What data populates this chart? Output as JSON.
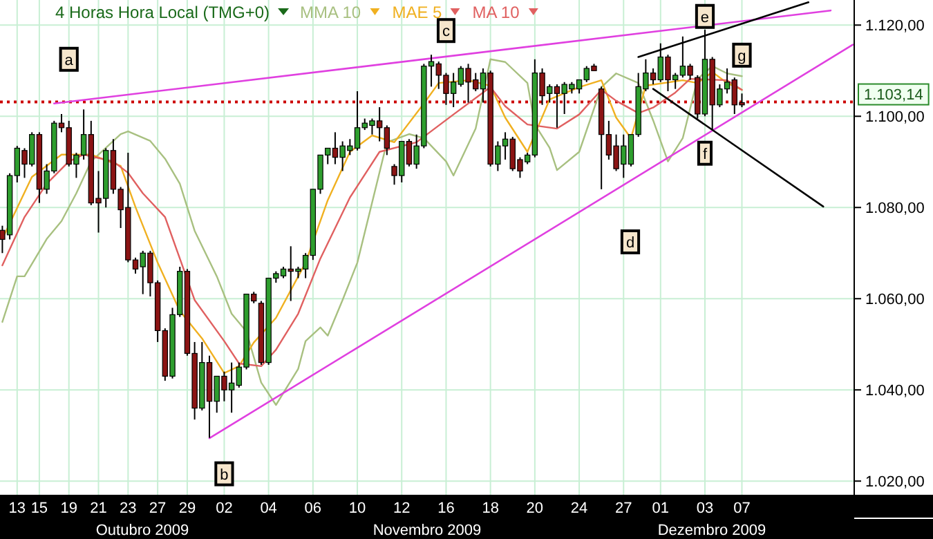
{
  "chart_data": {
    "type": "candlestick",
    "title": "4 Horas Hora Local (TMG+0)",
    "legend": "top",
    "grid": true,
    "ylim": [
      1017,
      1125.5
    ],
    "yticks": [
      {
        "value": 1020,
        "label": "1.020,00"
      },
      {
        "value": 1040,
        "label": "1.040,00"
      },
      {
        "value": 1060,
        "label": "1.060,00"
      },
      {
        "value": 1080,
        "label": "1.080,00"
      },
      {
        "value": 1100,
        "label": "1.100,00"
      },
      {
        "value": 1120,
        "label": "1.120,00"
      }
    ],
    "categories": [
      null,
      null,
      "13",
      null,
      null,
      "15",
      null,
      null,
      null,
      "19",
      null,
      null,
      null,
      "21",
      null,
      null,
      null,
      "23",
      null,
      null,
      null,
      "27",
      null,
      null,
      null,
      "29",
      null,
      null,
      null,
      null,
      "02",
      null,
      null,
      null,
      null,
      null,
      "04",
      null,
      null,
      null,
      null,
      null,
      "06",
      null,
      null,
      null,
      null,
      null,
      "10",
      null,
      null,
      null,
      null,
      null,
      "12",
      null,
      null,
      null,
      null,
      null,
      "16",
      null,
      null,
      null,
      null,
      null,
      "18",
      null,
      null,
      null,
      null,
      null,
      "20",
      null,
      null,
      null,
      null,
      null,
      "24",
      null,
      null,
      null,
      null,
      null,
      "27",
      null,
      null,
      null,
      null,
      "01",
      null,
      null,
      null,
      null,
      null,
      "03",
      null,
      null,
      null,
      null,
      "07",
      null,
      null,
      null,
      null,
      null,
      null,
      null,
      null,
      null,
      null,
      null,
      null,
      null,
      null,
      null
    ],
    "ohlc": [
      [
        1075,
        1076,
        1070,
        1073
      ],
      [
        1074,
        1087.5,
        1073,
        1087
      ],
      [
        1087,
        1093.5,
        1085.5,
        1093
      ],
      [
        1092.5,
        1093,
        1086.5,
        1089.5
      ],
      [
        1089.5,
        1096.5,
        1089,
        1096
      ],
      [
        1096,
        1096.5,
        1081,
        1084
      ],
      [
        1084,
        1089.5,
        1083,
        1088
      ],
      [
        1088,
        1099,
        1087.5,
        1098.5
      ],
      [
        1098.5,
        1100.5,
        1096.5,
        1097.5
      ],
      [
        1097.5,
        1099,
        1089,
        1089.5
      ],
      [
        1089.5,
        1092,
        1086.5,
        1091.5
      ],
      [
        1091.5,
        1101.5,
        1090.5,
        1096
      ],
      [
        1096,
        1099,
        1080.5,
        1081
      ],
      [
        1082,
        1088,
        1074.5,
        1081
      ],
      [
        1082,
        1093,
        1080,
        1092.5
      ],
      [
        1092.5,
        1095,
        1083,
        1084
      ],
      [
        1084,
        1084.5,
        1075.5,
        1079.5
      ],
      [
        1080,
        1092,
        1068,
        1068.5
      ],
      [
        1068.5,
        1069,
        1065.5,
        1066.5
      ],
      [
        1067,
        1070.5,
        1061,
        1070
      ],
      [
        1070,
        1070.5,
        1060.5,
        1063.5
      ],
      [
        1063.5,
        1064,
        1050.5,
        1053
      ],
      [
        1053,
        1053.5,
        1042,
        1043
      ],
      [
        1043,
        1058,
        1042.5,
        1056.5
      ],
      [
        1056.5,
        1067,
        1056,
        1066
      ],
      [
        1066,
        1066.5,
        1047.5,
        1048
      ],
      [
        1048,
        1050.5,
        1033.5,
        1036
      ],
      [
        1036,
        1050.5,
        1035.5,
        1046
      ],
      [
        1046,
        1047.5,
        1029.5,
        1037.5
      ],
      [
        1037.5,
        1043,
        1035,
        1043
      ],
      [
        1043,
        1044,
        1037.5,
        1040
      ],
      [
        1040,
        1046,
        1035,
        1041.5
      ],
      [
        1041,
        1046,
        1040.5,
        1045
      ],
      [
        1045,
        1061,
        1044.5,
        1061
      ],
      [
        1061,
        1061.5,
        1059,
        1059.5
      ],
      [
        1059,
        1059.5,
        1045.5,
        1046
      ],
      [
        1046,
        1064.5,
        1045.5,
        1064.5
      ],
      [
        1064.5,
        1066,
        1063.5,
        1065.5
      ],
      [
        1065,
        1067,
        1064.5,
        1066.5
      ],
      [
        1066.5,
        1071.5,
        1059.5,
        1066
      ],
      [
        1066,
        1067,
        1064.5,
        1066.5
      ],
      [
        1066.5,
        1070,
        1064.5,
        1069.5
      ],
      [
        1069.5,
        1084,
        1068.5,
        1084
      ],
      [
        1084,
        1091.5,
        1083,
        1091.5
      ],
      [
        1091.5,
        1093,
        1089.5,
        1093
      ],
      [
        1093,
        1096.5,
        1089.5,
        1091
      ],
      [
        1091,
        1094.5,
        1088,
        1093.5
      ],
      [
        1092.5,
        1095,
        1091.5,
        1093.5
      ],
      [
        1093,
        1105.5,
        1092.5,
        1097.5
      ],
      [
        1097.5,
        1099.5,
        1097,
        1098.5
      ],
      [
        1098,
        1099.5,
        1096,
        1099
      ],
      [
        1099,
        1102,
        1094.5,
        1097.5
      ],
      [
        1097.5,
        1098,
        1091.5,
        1093
      ],
      [
        1089,
        1089.5,
        1085,
        1087
      ],
      [
        1087,
        1094.5,
        1085.5,
        1094.5
      ],
      [
        1094.5,
        1095,
        1089,
        1089.5
      ],
      [
        1089.5,
        1096,
        1088.5,
        1093.5
      ],
      [
        1093.5,
        1111.5,
        1093,
        1111
      ],
      [
        1111,
        1113.5,
        1106.5,
        1112
      ],
      [
        1111.5,
        1112,
        1106,
        1109
      ],
      [
        1109,
        1109.5,
        1102.5,
        1105
      ],
      [
        1105,
        1109.5,
        1102,
        1107.5
      ],
      [
        1107,
        1111,
        1106.5,
        1110.5
      ],
      [
        1110.5,
        1111.5,
        1103,
        1107.5
      ],
      [
        1108,
        1109.5,
        1105.5,
        1106
      ],
      [
        1106,
        1110.5,
        1103,
        1109.5
      ],
      [
        1109.5,
        1110,
        1089,
        1089.5
      ],
      [
        1089.5,
        1094.5,
        1088,
        1093.5
      ],
      [
        1093.5,
        1096.5,
        1090.5,
        1095
      ],
      [
        1095,
        1095.5,
        1088,
        1088.5
      ],
      [
        1090.5,
        1091,
        1086.5,
        1088
      ],
      [
        1090,
        1092,
        1089.5,
        1091.5
      ],
      [
        1091.5,
        1112.5,
        1091,
        1109.5
      ],
      [
        1109.5,
        1110.5,
        1102.5,
        1104.5
      ],
      [
        1105,
        1107,
        1103,
        1106.5
      ],
      [
        1106.5,
        1107,
        1097.5,
        1105
      ],
      [
        1105,
        1107.5,
        1100.5,
        1107
      ],
      [
        1106,
        1107.5,
        1105,
        1107
      ],
      [
        1106,
        1108,
        1105,
        1108
      ],
      [
        1108,
        1111,
        1107.5,
        1110.5
      ],
      [
        1111,
        1111.5,
        1110,
        1110
      ],
      [
        1106,
        1106.5,
        1084,
        1096
      ],
      [
        1096,
        1099,
        1090.5,
        1091.5
      ],
      [
        1093.5,
        1096,
        1088,
        1088.5
      ],
      [
        1089.5,
        1096,
        1086.5,
        1093.5
      ],
      [
        1089.5,
        1096,
        1089,
        1096
      ],
      [
        1096,
        1109.5,
        1095.5,
        1106.5
      ],
      [
        1106,
        1112.5,
        1105.5,
        1109.5
      ],
      [
        1109.5,
        1110.5,
        1107,
        1108
      ],
      [
        1108,
        1116,
        1107.5,
        1113
      ],
      [
        1113,
        1113.5,
        1105.5,
        1108
      ],
      [
        1108,
        1109.5,
        1106,
        1109
      ],
      [
        1109,
        1117.5,
        1108.5,
        1111
      ],
      [
        1111,
        1111.5,
        1108,
        1109
      ],
      [
        1108.5,
        1109,
        1099.5,
        1100.5
      ],
      [
        1100.5,
        1119,
        1100,
        1112.5
      ],
      [
        1112.5,
        1113,
        1097,
        1102.5
      ],
      [
        1102.5,
        1107,
        1102,
        1106
      ],
      [
        1106,
        1110.5,
        1105,
        1107.5
      ],
      [
        1108,
        1108.5,
        1100.5,
        1102.5
      ],
      [
        1103,
        1105,
        1102,
        1102.5
      ],
      null,
      null,
      null,
      null,
      null,
      null,
      null,
      null,
      null,
      null,
      null,
      null,
      null,
      null,
      null
    ],
    "series": [
      {
        "name": "MMA 10",
        "type": "line",
        "color": "#a8c080",
        "values": [
          1054.9,
          null,
          1064.9,
          1064.9,
          null,
          null,
          1073.1,
          null,
          1077,
          null,
          1083.1,
          null,
          1090.1,
          null,
          null,
          null,
          1096.1,
          1096.7,
          null,
          null,
          1094.6,
          null,
          1090.7,
          null,
          1085.2,
          null,
          1074.9,
          null,
          null,
          1064.9,
          null,
          1056.7,
          null,
          1052.8,
          null,
          1041.6,
          null,
          1036.7,
          null,
          null,
          1044.6,
          1050.7,
          null,
          1053.7,
          1051.9,
          null,
          1059.7,
          null,
          1067.9,
          null,
          null,
          null,
          1094.3,
          null,
          null,
          1096.1,
          null,
          1095.2,
          null,
          null,
          1090.1,
          1087,
          null,
          null,
          1097.3,
          null,
          1112.5,
          null,
          1111.9,
          null,
          null,
          1107.3,
          1098.2,
          null,
          1093.1,
          1088.2,
          null,
          null,
          1092.2,
          null,
          null,
          1106.4,
          null,
          1109.4,
          null,
          null,
          1107.3,
          null,
          1099.1,
          null,
          1090.1,
          null,
          1095.2,
          null,
          1108.2,
          null,
          1111,
          null,
          1109.4,
          null,
          1108.8,
          null,
          null,
          null,
          null,
          null,
          null,
          null,
          null,
          null,
          null,
          null,
          null,
          null,
          null,
          null
        ]
      },
      {
        "name": "MAE 5",
        "type": "line",
        "color": "#f0b020",
        "values": [
          1073.1,
          null,
          null,
          null,
          1086.7,
          null,
          null,
          null,
          1091.6,
          null,
          null,
          null,
          1091.6,
          null,
          null,
          null,
          1089.1,
          null,
          1080.1,
          null,
          null,
          1067.9,
          null,
          null,
          1057.3,
          null,
          null,
          1051.3,
          null,
          null,
          1043.7,
          null,
          1045.2,
          null,
          1050.4,
          null,
          null,
          1055.8,
          null,
          null,
          null,
          1067.9,
          null,
          null,
          1081.6,
          null,
          null,
          1092.2,
          null,
          null,
          1095.8,
          null,
          null,
          1094.3,
          null,
          null,
          null,
          1102.8,
          null,
          1107.3,
          null,
          null,
          null,
          1107.9,
          null,
          null,
          1106.7,
          null,
          1099.7,
          null,
          null,
          1092.2,
          null,
          null,
          1103.7,
          null,
          null,
          null,
          1106.4,
          null,
          null,
          1107.9,
          null,
          1099.7,
          null,
          1095.2,
          null,
          1106.7,
          null,
          null,
          null,
          null,
          1107.9,
          null,
          1107.3,
          null,
          1109.7,
          null,
          1107.3,
          null,
          1105.8,
          null,
          null,
          null,
          null,
          null,
          null,
          null,
          null,
          null,
          null,
          null,
          null,
          null,
          null,
          null
        ]
      },
      {
        "name": "MA 10",
        "type": "line",
        "color": "#e06060",
        "values": [
          1067.3,
          null,
          null,
          1077.9,
          null,
          null,
          1085.2,
          null,
          null,
          1090.1,
          null,
          1091.6,
          null,
          null,
          null,
          1090.1,
          null,
          1087.6,
          null,
          1083.1,
          null,
          null,
          1077.9,
          null,
          1068.8,
          null,
          1059.7,
          null,
          null,
          null,
          1050.7,
          null,
          1045.8,
          null,
          null,
          1045.2,
          null,
          1048.8,
          null,
          null,
          1056.7,
          null,
          null,
          1068.8,
          null,
          null,
          null,
          1082.2,
          null,
          null,
          null,
          1092.2,
          null,
          null,
          null,
          null,
          1094.3,
          null,
          null,
          null,
          null,
          1100.4,
          null,
          null,
          null,
          null,
          1106.4,
          null,
          1102.2,
          null,
          null,
          1098.2,
          null,
          null,
          null,
          1097.3,
          null,
          null,
          1100.4,
          null,
          null,
          1105.8,
          null,
          1103.4,
          null,
          null,
          1100.7,
          null,
          1101.9,
          null,
          null,
          1105.2,
          null,
          1108.2,
          null,
          null,
          null,
          null,
          1107.9,
          null,
          1105.8,
          null,
          null,
          null,
          null,
          null,
          null,
          null,
          null,
          null,
          null,
          null,
          null,
          null,
          null,
          null
        ]
      },
      {
        "type": "line",
        "color": "#e040e0",
        "values": [
          null,
          null,
          null,
          null,
          null,
          null,
          null,
          1102.8,
          null,
          null,
          null,
          null,
          null,
          null,
          null,
          null,
          null,
          null,
          null,
          null,
          null,
          null,
          null,
          null,
          null,
          null,
          null,
          null,
          null,
          null,
          null,
          null,
          null,
          null,
          null,
          null,
          null,
          null,
          null,
          null,
          null,
          null,
          null,
          null,
          null,
          null,
          null,
          null,
          null,
          null,
          null,
          null,
          null,
          null,
          null,
          null,
          null,
          null,
          null,
          null,
          null,
          null,
          null,
          null,
          null,
          null,
          null,
          null,
          null,
          null,
          null,
          null,
          null,
          null,
          null,
          null,
          null,
          null,
          null,
          null,
          null,
          null,
          null,
          null,
          null,
          null,
          null,
          null,
          null,
          null,
          null,
          null,
          null,
          null,
          null,
          null,
          null,
          null,
          null,
          null,
          null,
          null,
          null,
          null,
          null,
          null,
          null,
          null,
          null,
          null,
          null,
          null,
          1123.2,
          null,
          null,
          null
        ]
      },
      {
        "type": "line",
        "color": "#e040e0",
        "values": [
          null,
          null,
          null,
          null,
          null,
          null,
          null,
          null,
          null,
          null,
          null,
          null,
          null,
          null,
          null,
          null,
          null,
          null,
          null,
          null,
          null,
          null,
          null,
          null,
          null,
          null,
          null,
          null,
          1029.4,
          null,
          null,
          null,
          null,
          null,
          null,
          null,
          null,
          null,
          null,
          null,
          null,
          null,
          null,
          null,
          null,
          null,
          null,
          null,
          null,
          null,
          null,
          null,
          null,
          null,
          null,
          null,
          null,
          null,
          null,
          null,
          null,
          null,
          null,
          null,
          null,
          null,
          null,
          null,
          null,
          null,
          null,
          null,
          null,
          null,
          null,
          null,
          null,
          null,
          null,
          null,
          null,
          null,
          null,
          null,
          null,
          null,
          null,
          null,
          null,
          null,
          null,
          null,
          null,
          null,
          null,
          null,
          null,
          null,
          null,
          null,
          null,
          null,
          null,
          null,
          null,
          null,
          null,
          null,
          null,
          null,
          null,
          null,
          null,
          null,
          null,
          1115.7
        ]
      },
      {
        "type": "line",
        "color": "#000000",
        "values": [
          null,
          null,
          null,
          null,
          null,
          null,
          null,
          null,
          null,
          null,
          null,
          null,
          null,
          null,
          null,
          null,
          null,
          null,
          null,
          null,
          null,
          null,
          null,
          null,
          null,
          null,
          null,
          null,
          null,
          null,
          null,
          null,
          null,
          null,
          null,
          null,
          null,
          null,
          null,
          null,
          null,
          null,
          null,
          null,
          null,
          null,
          null,
          null,
          null,
          null,
          null,
          null,
          null,
          null,
          null,
          null,
          null,
          null,
          null,
          null,
          null,
          null,
          null,
          null,
          null,
          null,
          null,
          null,
          null,
          null,
          null,
          null,
          null,
          null,
          null,
          null,
          null,
          null,
          null,
          null,
          null,
          null,
          null,
          null,
          null,
          null,
          1113,
          null,
          null,
          null,
          null,
          null,
          null,
          null,
          null,
          null,
          null,
          null,
          null,
          null,
          null,
          null,
          null,
          null,
          null,
          null,
          null,
          null,
          null,
          1125,
          null,
          null,
          null,
          null,
          null,
          null
        ]
      },
      {
        "type": "line",
        "color": "#000000",
        "values": [
          null,
          null,
          null,
          null,
          null,
          null,
          null,
          null,
          null,
          null,
          null,
          null,
          null,
          null,
          null,
          null,
          null,
          null,
          null,
          null,
          null,
          null,
          null,
          null,
          null,
          null,
          null,
          null,
          null,
          null,
          null,
          null,
          null,
          null,
          null,
          null,
          null,
          null,
          null,
          null,
          null,
          null,
          null,
          null,
          null,
          null,
          null,
          null,
          null,
          null,
          null,
          null,
          null,
          null,
          null,
          null,
          null,
          null,
          null,
          null,
          null,
          null,
          null,
          null,
          null,
          null,
          null,
          null,
          null,
          null,
          null,
          null,
          null,
          null,
          null,
          null,
          null,
          null,
          null,
          null,
          null,
          null,
          null,
          null,
          null,
          null,
          null,
          null,
          1106,
          null,
          null,
          null,
          null,
          null,
          null,
          null,
          null,
          null,
          null,
          null,
          null,
          null,
          null,
          null,
          null,
          null,
          null,
          null,
          null,
          null,
          null,
          1080.2,
          null,
          null,
          null,
          null
        ]
      }
    ],
    "ref_lines": [
      {
        "axis": "y",
        "value": 1103.14,
        "label": "1.103,14",
        "color": "#cc0000",
        "line_style": "dotted"
      }
    ],
    "annotations": [
      {
        "text": "a",
        "x": "19",
        "y": 1112.5
      },
      {
        "text": "b",
        "x": "02",
        "y": 1021.6
      },
      {
        "text": "c",
        "x": "16",
        "y": 1118.8
      },
      "d",
      {
        "text": "e",
        "x": "03",
        "y": 1121.9
      },
      {
        "text": "f",
        "x": "03",
        "y": 1091.9
      },
      {
        "text": "g",
        "x": "07",
        "y": 1113.4
      },
      "Outubro 2009",
      "Novembro 2009",
      "Dezembro 2009"
    ]
  }
}
